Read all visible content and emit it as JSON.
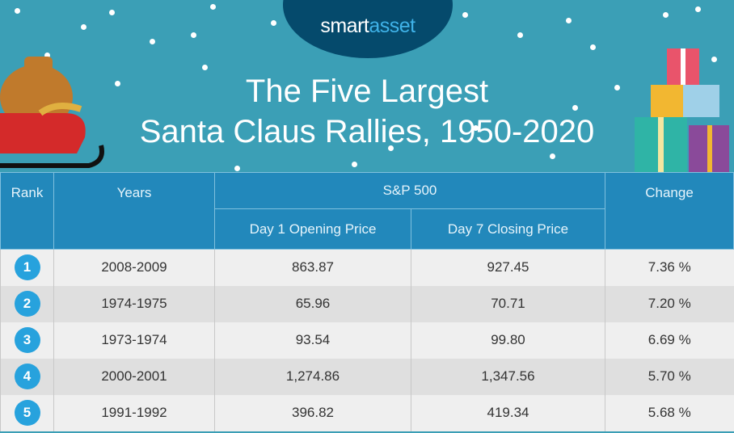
{
  "logo": {
    "part1": "smart",
    "part2": "asset"
  },
  "title": {
    "line1": "The Five Largest",
    "line2": "Santa Claus Rallies, 1950-2020"
  },
  "colors": {
    "background": "#3b9fb6",
    "header": "#2288bb",
    "rank_circle": "#27a2dd",
    "logo_bg": "#054a6c"
  },
  "chart_data": {
    "type": "table",
    "title": "The Five Largest Santa Claus Rallies, 1950-2020",
    "headers": {
      "rank": "Rank",
      "years": "Years",
      "group": "S&P 500",
      "open": "Day 1 Opening Price",
      "close": "Day 7 Closing Price",
      "change": "Change"
    },
    "rows": [
      {
        "rank": "1",
        "years": "2008-2009",
        "open": "863.87",
        "close": "927.45",
        "change": "7.36 %"
      },
      {
        "rank": "2",
        "years": "1974-1975",
        "open": "65.96",
        "close": "70.71",
        "change": "7.20 %"
      },
      {
        "rank": "3",
        "years": "1973-1974",
        "open": "93.54",
        "close": "99.80",
        "change": "6.69 %"
      },
      {
        "rank": "4",
        "years": "2000-2001",
        "open": "1,274.86",
        "close": "1,347.56",
        "change": "5.70 %"
      },
      {
        "rank": "5",
        "years": "1991-1992",
        "open": "396.82",
        "close": "419.34",
        "change": "5.68 %"
      }
    ]
  }
}
